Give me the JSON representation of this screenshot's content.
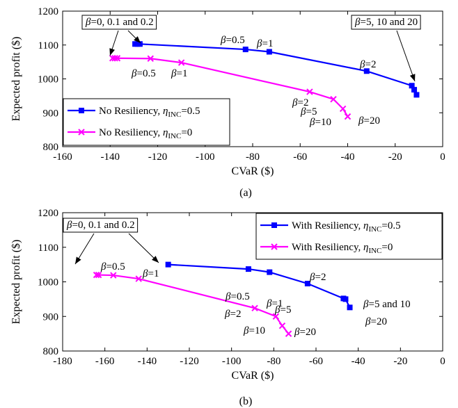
{
  "chart_data": [
    {
      "id": "a",
      "type": "line",
      "caption": "(a)",
      "xlabel": "CVaR ($)",
      "ylabel": "Expected profit ($)",
      "xlim": [
        -160,
        0
      ],
      "ylim": [
        800,
        1200
      ],
      "xticks": [
        -160,
        -140,
        -120,
        -100,
        -80,
        -60,
        -40,
        -20,
        0
      ],
      "yticks": [
        800,
        900,
        1000,
        1100,
        1200
      ],
      "legend_position": "bottom-left",
      "series": [
        {
          "name": "No Resiliency, η_INC=0.5",
          "legend": {
            "text": "No Resiliency, ",
            "sym": "η",
            "sub": "INC",
            "suffix": "=0.5"
          },
          "color": "#0000ff",
          "marker": "square",
          "x": [
            -129.5,
            -128.5,
            -127.5,
            -83,
            -73,
            -32,
            -13,
            -12,
            -11
          ],
          "y": [
            1103,
            1103,
            1103,
            1087,
            1080,
            1023,
            980,
            968,
            953
          ]
        },
        {
          "name": "No Resiliency, η_INC=0",
          "legend": {
            "text": "No Resiliency, ",
            "sym": "η",
            "sub": "INC",
            "suffix": "=0"
          },
          "color": "#ff00ff",
          "marker": "x",
          "x": [
            -139,
            -138,
            -137,
            -123,
            -110,
            -56,
            -46,
            -42,
            -40
          ],
          "y": [
            1061,
            1061,
            1061,
            1060,
            1048,
            962,
            940,
            912,
            889
          ]
        }
      ],
      "annotations": [
        {
          "text": "=0, 0.1 and 0.2"
        },
        {
          "text": "=0.5"
        },
        {
          "text": "=1"
        },
        {
          "text": "=2"
        },
        {
          "text": "=5, 10 and 20"
        },
        {
          "text": "=0.5"
        },
        {
          "text": "=1"
        },
        {
          "text": "=2"
        },
        {
          "text": "=5"
        },
        {
          "text": "=10"
        },
        {
          "text": "=20"
        }
      ]
    },
    {
      "id": "b",
      "type": "line",
      "caption": "(b)",
      "xlabel": "CVaR ($)",
      "ylabel": "Expected profit ($)",
      "xlim": [
        -180,
        0
      ],
      "ylim": [
        800,
        1200
      ],
      "xticks": [
        -180,
        -160,
        -140,
        -120,
        -100,
        -80,
        -60,
        -40,
        -20,
        0
      ],
      "yticks": [
        800,
        900,
        1000,
        1100,
        1200
      ],
      "legend_position": "top-right",
      "series": [
        {
          "name": "With Resiliency, η_INC=0.5",
          "legend": {
            "text": "With Resiliency, ",
            "sym": "η",
            "sub": "INC",
            "suffix": "=0.5"
          },
          "color": "#0000ff",
          "marker": "square",
          "x": [
            -130,
            -92,
            -82,
            -64,
            -47,
            -46,
            -44
          ],
          "y": [
            1050,
            1037,
            1028,
            995,
            952,
            950,
            926
          ],
          "label_unused": ""
        },
        {
          "name": "With Resiliency, η_INC=0",
          "legend": {
            "text": "With Resiliency, ",
            "sym": "η",
            "sub": "INC",
            "suffix": "=0"
          },
          "color": "#ff00ff",
          "marker": "x",
          "x": [
            -164,
            -163,
            -156,
            -144,
            -89,
            -79,
            -76,
            -73
          ],
          "y": [
            1020,
            1020,
            1019,
            1009,
            924,
            900,
            873,
            850
          ]
        }
      ],
      "annotations": [
        {
          "text": "=0, 0.1 and 0.2"
        },
        {
          "text": "=0.5"
        },
        {
          "text": "=1"
        },
        {
          "text": "=0.5"
        },
        {
          "text": "=1"
        },
        {
          "text": "=2"
        },
        {
          "text": "=5 and 10"
        },
        {
          "text": "=20"
        },
        {
          "text": "=2"
        },
        {
          "text": "=5"
        },
        {
          "text": "=10"
        },
        {
          "text": "=20"
        }
      ]
    }
  ]
}
